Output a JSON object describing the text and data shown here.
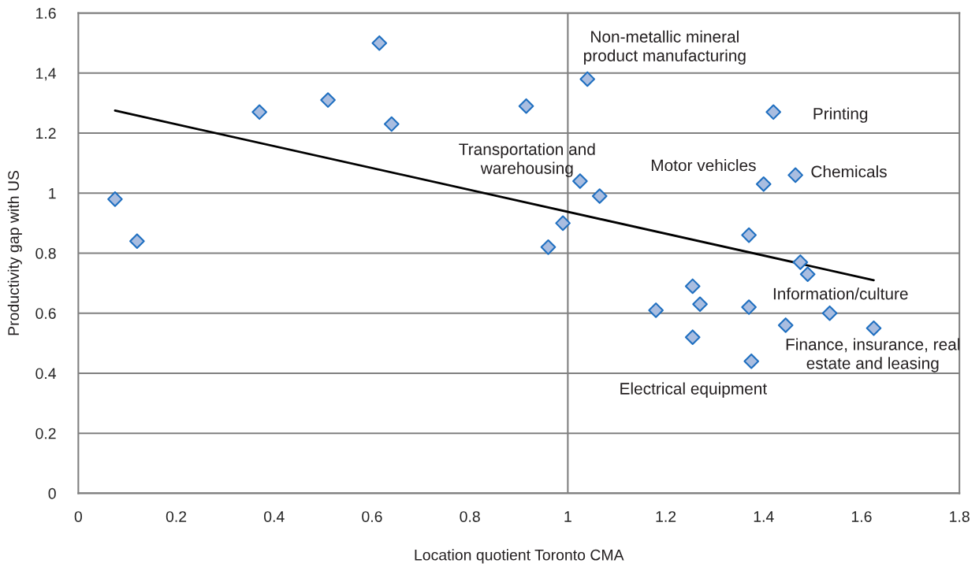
{
  "chart_data": {
    "type": "scatter",
    "xlabel": "Location quotient Toronto CMA",
    "ylabel": "Productivity gap with US",
    "xlim": [
      0,
      1.8
    ],
    "xticks": [
      0,
      0.2,
      0.4,
      0.6,
      0.8,
      1,
      1.2,
      1.4,
      1.6,
      1.8
    ],
    "ylim": [
      0,
      1.6
    ],
    "yticks": [
      0,
      0.2,
      0.4,
      0.6,
      0.8,
      1,
      1.2,
      {
        "value": 1.4,
        "label": "1,4"
      },
      1.6
    ],
    "grid": "y",
    "marker": "diamond",
    "legend": false,
    "ref_lines": [
      {
        "axis": "x",
        "value": 1,
        "label": null,
        "color": "#808080"
      }
    ],
    "series": [
      {
        "color": "#a9bde0",
        "x": [
          0.075,
          0.12,
          0.37,
          0.51,
          0.615,
          0.64,
          0.915,
          0.96,
          0.99,
          1.025,
          1.04,
          1.065,
          1.18,
          1.255,
          1.255,
          1.27,
          1.37,
          1.37,
          1.375,
          1.4,
          1.42,
          1.445,
          1.465,
          1.475,
          1.49,
          1.535,
          1.625
        ],
        "values": [
          0.98,
          0.84,
          1.27,
          1.31,
          1.5,
          1.23,
          1.29,
          0.82,
          0.9,
          1.04,
          1.38,
          0.99,
          0.61,
          0.69,
          0.52,
          0.63,
          0.86,
          0.62,
          0.44,
          1.03,
          1.27,
          0.56,
          1.06,
          0.77,
          0.73,
          0.6,
          0.55
        ]
      },
      {
        "type": "line",
        "color": "#000000",
        "marker": "none",
        "x": [
          0.075,
          1.625
        ],
        "values": [
          1.275,
          0.71
        ]
      }
    ],
    "annotations": [
      {
        "text": "Non-metallic mineral\nproduct manufacturing",
        "x": 1.04,
        "y": 1.38
      },
      {
        "text": "Printing",
        "x": 1.42,
        "y": 1.27
      },
      {
        "text": "Transportation and\nwarehousing",
        "x": 1.025,
        "y": 1.04
      },
      {
        "text": "Motor vehicles",
        "x": 1.4,
        "y": 1.03
      },
      {
        "text": "Chemicals",
        "x": 1.465,
        "y": 1.06
      },
      {
        "text": "Information/culture",
        "x": 1.49,
        "y": 0.73
      },
      {
        "text": "Finance, insurance, real\nestate and leasing",
        "x": 1.625,
        "y": 0.55
      },
      {
        "text": "Electrical equipment",
        "x": 1.375,
        "y": 0.44
      }
    ]
  }
}
